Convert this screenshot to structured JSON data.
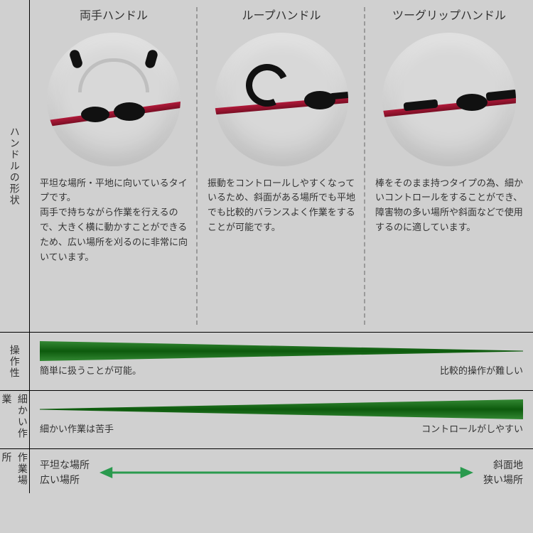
{
  "rows": {
    "shape": "ハンドルの形状",
    "ease": "操作性",
    "fine": "細かい作業",
    "place": "作業場所"
  },
  "cols": [
    {
      "title": "両手ハンドル",
      "desc": "平坦な場所・平地に向いているタイプです。\n両手で持ちながら作業を行えるので、大きく横に動かすことができるため、広い場所を刈るのに非常に向いています。"
    },
    {
      "title": "ループハンドル",
      "desc": "振動をコントロールしやすくなっているため、斜面がある場所でも平地でも比較的バランスよく作業をすることが可能です。"
    },
    {
      "title": "ツーグリップハンドル",
      "desc": "棒をそのまま持つタイプの為、細かいコントロールをすることができ、障害物の多い場所や斜面などで使用するのに適しています。"
    }
  ],
  "ease": {
    "left": "簡単に扱うことが可能。",
    "right": "比較的操作が難しい"
  },
  "fine": {
    "left": "細かい作業は苦手",
    "right": "コントロールがしやすい"
  },
  "place": {
    "left1": "平坦な場所",
    "left2": "広い場所",
    "right1": "斜面地",
    "right2": "狭い場所"
  },
  "colors": {
    "wedge_dark": "#0d5a0d",
    "arrow": "#2a9a4e",
    "divider": "#9a9a9a",
    "border": "#000000",
    "bg": "#d0d0d0"
  }
}
